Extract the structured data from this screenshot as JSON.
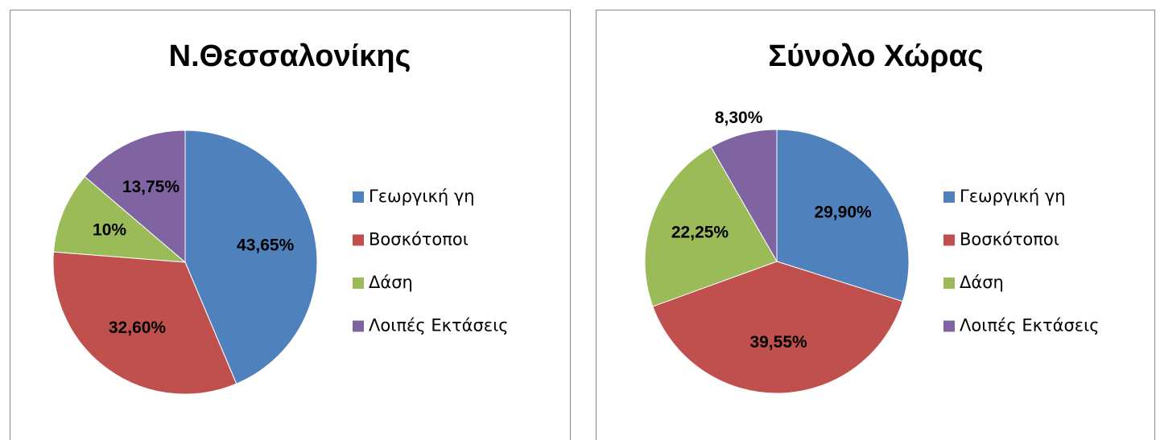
{
  "chart_data": [
    {
      "type": "pie",
      "title": "Ν.Θεσσαλονίκης",
      "categories": [
        "Γεωργική γη",
        "Βοσκότοποι",
        "Δάση",
        "Λοιπές Εκτάσεις"
      ],
      "values": [
        43.65,
        32.6,
        10,
        13.75
      ],
      "value_labels": [
        "43,65%",
        "32,60%",
        "10%",
        "13,75%"
      ],
      "colors": [
        "#4f81bd",
        "#c0504d",
        "#9bbb59",
        "#8064a2"
      ],
      "legend": "right"
    },
    {
      "type": "pie",
      "title": "Σύνολο Χώρας",
      "categories": [
        "Γεωργική γη",
        "Βοσκότοποι",
        "Δάση",
        "Λοιπές Εκτάσεις"
      ],
      "values": [
        29.9,
        39.55,
        22.25,
        8.3
      ],
      "value_labels": [
        "29,90%",
        "39,55%",
        "22,25%",
        "8,30%"
      ],
      "colors": [
        "#4f81bd",
        "#c0504d",
        "#9bbb59",
        "#8064a2"
      ],
      "legend": "right"
    }
  ]
}
